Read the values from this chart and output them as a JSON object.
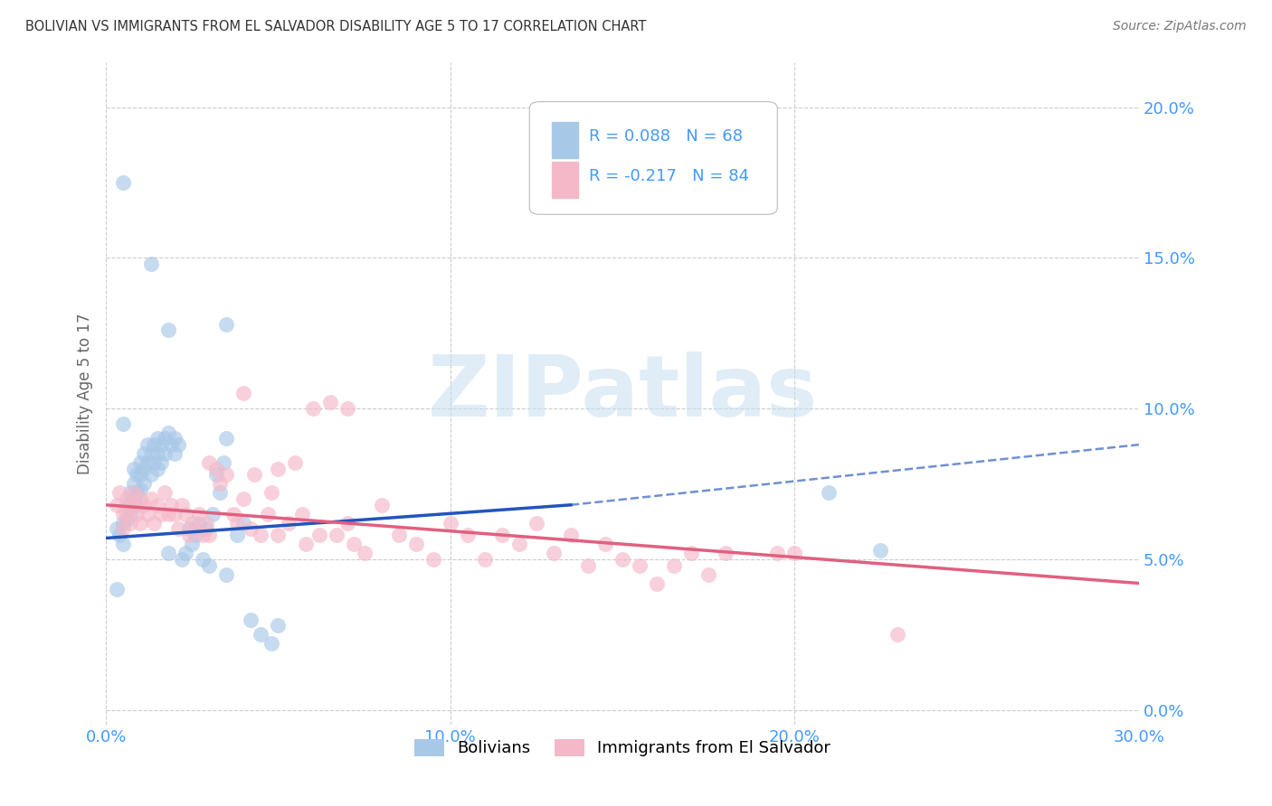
{
  "title": "BOLIVIAN VS IMMIGRANTS FROM EL SALVADOR DISABILITY AGE 5 TO 17 CORRELATION CHART",
  "source": "Source: ZipAtlas.com",
  "ylabel": "Disability Age 5 to 17",
  "xlim": [
    0.0,
    0.3
  ],
  "ylim": [
    -0.005,
    0.215
  ],
  "yticks": [
    0.0,
    0.05,
    0.1,
    0.15,
    0.2
  ],
  "ytick_labels": [
    "0.0%",
    "5.0%",
    "10.0%",
    "15.0%",
    "20.0%"
  ],
  "xticks": [
    0.0,
    0.1,
    0.2,
    0.3
  ],
  "xtick_labels": [
    "0.0%",
    "10.0%",
    "20.0%",
    "30.0%"
  ],
  "blue_color": "#a8c8e8",
  "pink_color": "#f5b8c8",
  "blue_line_color": "#2255bb",
  "pink_line_color": "#e06080",
  "blue_line_solid": [
    [
      0.0,
      0.057
    ],
    [
      0.135,
      0.068
    ]
  ],
  "blue_line_dashed": [
    [
      0.135,
      0.068
    ],
    [
      0.3,
      0.088
    ]
  ],
  "pink_line": [
    [
      0.0,
      0.068
    ],
    [
      0.3,
      0.042
    ]
  ],
  "blue_scatter": [
    [
      0.003,
      0.06
    ],
    [
      0.004,
      0.058
    ],
    [
      0.005,
      0.175
    ],
    [
      0.005,
      0.062
    ],
    [
      0.005,
      0.055
    ],
    [
      0.006,
      0.068
    ],
    [
      0.006,
      0.063
    ],
    [
      0.007,
      0.072
    ],
    [
      0.007,
      0.068
    ],
    [
      0.007,
      0.065
    ],
    [
      0.008,
      0.08
    ],
    [
      0.008,
      0.075
    ],
    [
      0.008,
      0.07
    ],
    [
      0.009,
      0.078
    ],
    [
      0.009,
      0.072
    ],
    [
      0.009,
      0.068
    ],
    [
      0.01,
      0.082
    ],
    [
      0.01,
      0.078
    ],
    [
      0.01,
      0.073
    ],
    [
      0.011,
      0.085
    ],
    [
      0.011,
      0.08
    ],
    [
      0.011,
      0.075
    ],
    [
      0.012,
      0.088
    ],
    [
      0.012,
      0.082
    ],
    [
      0.013,
      0.148
    ],
    [
      0.013,
      0.085
    ],
    [
      0.013,
      0.078
    ],
    [
      0.014,
      0.088
    ],
    [
      0.014,
      0.082
    ],
    [
      0.015,
      0.09
    ],
    [
      0.015,
      0.085
    ],
    [
      0.015,
      0.08
    ],
    [
      0.016,
      0.088
    ],
    [
      0.016,
      0.082
    ],
    [
      0.017,
      0.09
    ],
    [
      0.017,
      0.085
    ],
    [
      0.018,
      0.126
    ],
    [
      0.018,
      0.092
    ],
    [
      0.018,
      0.052
    ],
    [
      0.019,
      0.088
    ],
    [
      0.02,
      0.09
    ],
    [
      0.02,
      0.085
    ],
    [
      0.021,
      0.088
    ],
    [
      0.022,
      0.05
    ],
    [
      0.023,
      0.052
    ],
    [
      0.024,
      0.06
    ],
    [
      0.025,
      0.055
    ],
    [
      0.026,
      0.058
    ],
    [
      0.027,
      0.062
    ],
    [
      0.028,
      0.05
    ],
    [
      0.029,
      0.06
    ],
    [
      0.03,
      0.048
    ],
    [
      0.031,
      0.065
    ],
    [
      0.032,
      0.078
    ],
    [
      0.033,
      0.072
    ],
    [
      0.034,
      0.082
    ],
    [
      0.035,
      0.128
    ],
    [
      0.035,
      0.09
    ],
    [
      0.035,
      0.045
    ],
    [
      0.038,
      0.058
    ],
    [
      0.04,
      0.062
    ],
    [
      0.042,
      0.03
    ],
    [
      0.045,
      0.025
    ],
    [
      0.048,
      0.022
    ],
    [
      0.05,
      0.028
    ],
    [
      0.21,
      0.072
    ],
    [
      0.225,
      0.053
    ],
    [
      0.005,
      0.095
    ],
    [
      0.003,
      0.04
    ]
  ],
  "pink_scatter": [
    [
      0.003,
      0.068
    ],
    [
      0.004,
      0.072
    ],
    [
      0.005,
      0.065
    ],
    [
      0.005,
      0.06
    ],
    [
      0.006,
      0.07
    ],
    [
      0.006,
      0.065
    ],
    [
      0.007,
      0.068
    ],
    [
      0.007,
      0.062
    ],
    [
      0.008,
      0.072
    ],
    [
      0.008,
      0.068
    ],
    [
      0.009,
      0.065
    ],
    [
      0.01,
      0.07
    ],
    [
      0.01,
      0.062
    ],
    [
      0.011,
      0.068
    ],
    [
      0.012,
      0.065
    ],
    [
      0.013,
      0.07
    ],
    [
      0.014,
      0.062
    ],
    [
      0.015,
      0.068
    ],
    [
      0.016,
      0.065
    ],
    [
      0.017,
      0.072
    ],
    [
      0.018,
      0.065
    ],
    [
      0.019,
      0.068
    ],
    [
      0.02,
      0.065
    ],
    [
      0.021,
      0.06
    ],
    [
      0.022,
      0.068
    ],
    [
      0.023,
      0.065
    ],
    [
      0.024,
      0.058
    ],
    [
      0.025,
      0.062
    ],
    [
      0.026,
      0.06
    ],
    [
      0.027,
      0.065
    ],
    [
      0.028,
      0.058
    ],
    [
      0.029,
      0.062
    ],
    [
      0.03,
      0.082
    ],
    [
      0.03,
      0.058
    ],
    [
      0.032,
      0.08
    ],
    [
      0.033,
      0.075
    ],
    [
      0.035,
      0.078
    ],
    [
      0.037,
      0.065
    ],
    [
      0.038,
      0.062
    ],
    [
      0.04,
      0.105
    ],
    [
      0.04,
      0.07
    ],
    [
      0.042,
      0.06
    ],
    [
      0.043,
      0.078
    ],
    [
      0.045,
      0.058
    ],
    [
      0.047,
      0.065
    ],
    [
      0.048,
      0.072
    ],
    [
      0.05,
      0.08
    ],
    [
      0.05,
      0.058
    ],
    [
      0.053,
      0.062
    ],
    [
      0.055,
      0.082
    ],
    [
      0.057,
      0.065
    ],
    [
      0.058,
      0.055
    ],
    [
      0.06,
      0.1
    ],
    [
      0.062,
      0.058
    ],
    [
      0.065,
      0.102
    ],
    [
      0.067,
      0.058
    ],
    [
      0.07,
      0.1
    ],
    [
      0.07,
      0.062
    ],
    [
      0.072,
      0.055
    ],
    [
      0.075,
      0.052
    ],
    [
      0.08,
      0.068
    ],
    [
      0.085,
      0.058
    ],
    [
      0.09,
      0.055
    ],
    [
      0.095,
      0.05
    ],
    [
      0.1,
      0.062
    ],
    [
      0.105,
      0.058
    ],
    [
      0.11,
      0.05
    ],
    [
      0.115,
      0.058
    ],
    [
      0.12,
      0.055
    ],
    [
      0.125,
      0.062
    ],
    [
      0.13,
      0.052
    ],
    [
      0.135,
      0.058
    ],
    [
      0.14,
      0.048
    ],
    [
      0.145,
      0.055
    ],
    [
      0.15,
      0.05
    ],
    [
      0.155,
      0.048
    ],
    [
      0.16,
      0.042
    ],
    [
      0.165,
      0.048
    ],
    [
      0.17,
      0.052
    ],
    [
      0.175,
      0.045
    ],
    [
      0.18,
      0.052
    ],
    [
      0.195,
      0.052
    ],
    [
      0.2,
      0.052
    ],
    [
      0.23,
      0.025
    ]
  ],
  "watermark": "ZIPatlas",
  "background_color": "#ffffff",
  "grid_color": "#cccccc",
  "tick_color": "#4499ff",
  "title_color": "#333333",
  "source_color": "#777777",
  "ylabel_color": "#666666"
}
